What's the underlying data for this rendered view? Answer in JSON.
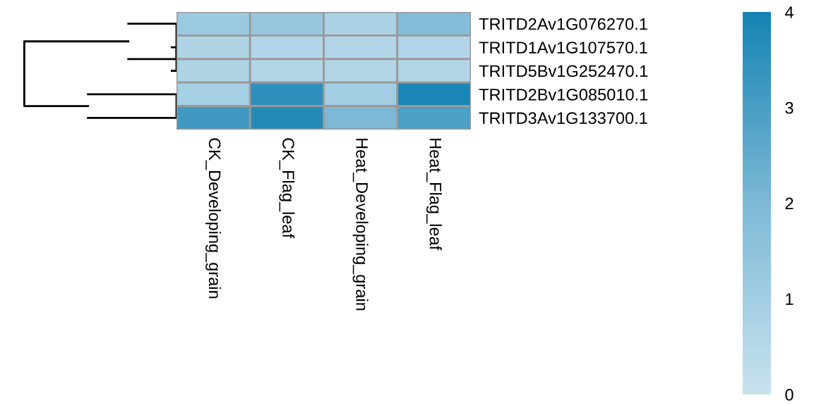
{
  "chart_data": {
    "type": "heatmap",
    "categories": [
      "CK_Developing_grain",
      "CK_Flag_leaf",
      "Heat_Developing_grain",
      "Heat_Flag_leaf"
    ],
    "y_categories": [
      "TRITD2Av1G076270.1",
      "TRITD1Av1G107570.1",
      "TRITD5Bv1G252470.1",
      "TRITD2Bv1G085010.1",
      "TRITD3Av1G133700.1"
    ],
    "cells": [
      [
        1.2,
        1.3,
        0.8,
        1.8
      ],
      [
        0.7,
        0.6,
        0.6,
        0.6
      ],
      [
        0.7,
        0.6,
        0.6,
        0.6
      ],
      [
        0.9,
        3.5,
        1.0,
        3.9
      ],
      [
        3.2,
        3.7,
        2.0,
        2.9
      ]
    ],
    "clim": [
      0,
      4
    ],
    "cticks": [
      0,
      1,
      2,
      3,
      4
    ]
  }
}
